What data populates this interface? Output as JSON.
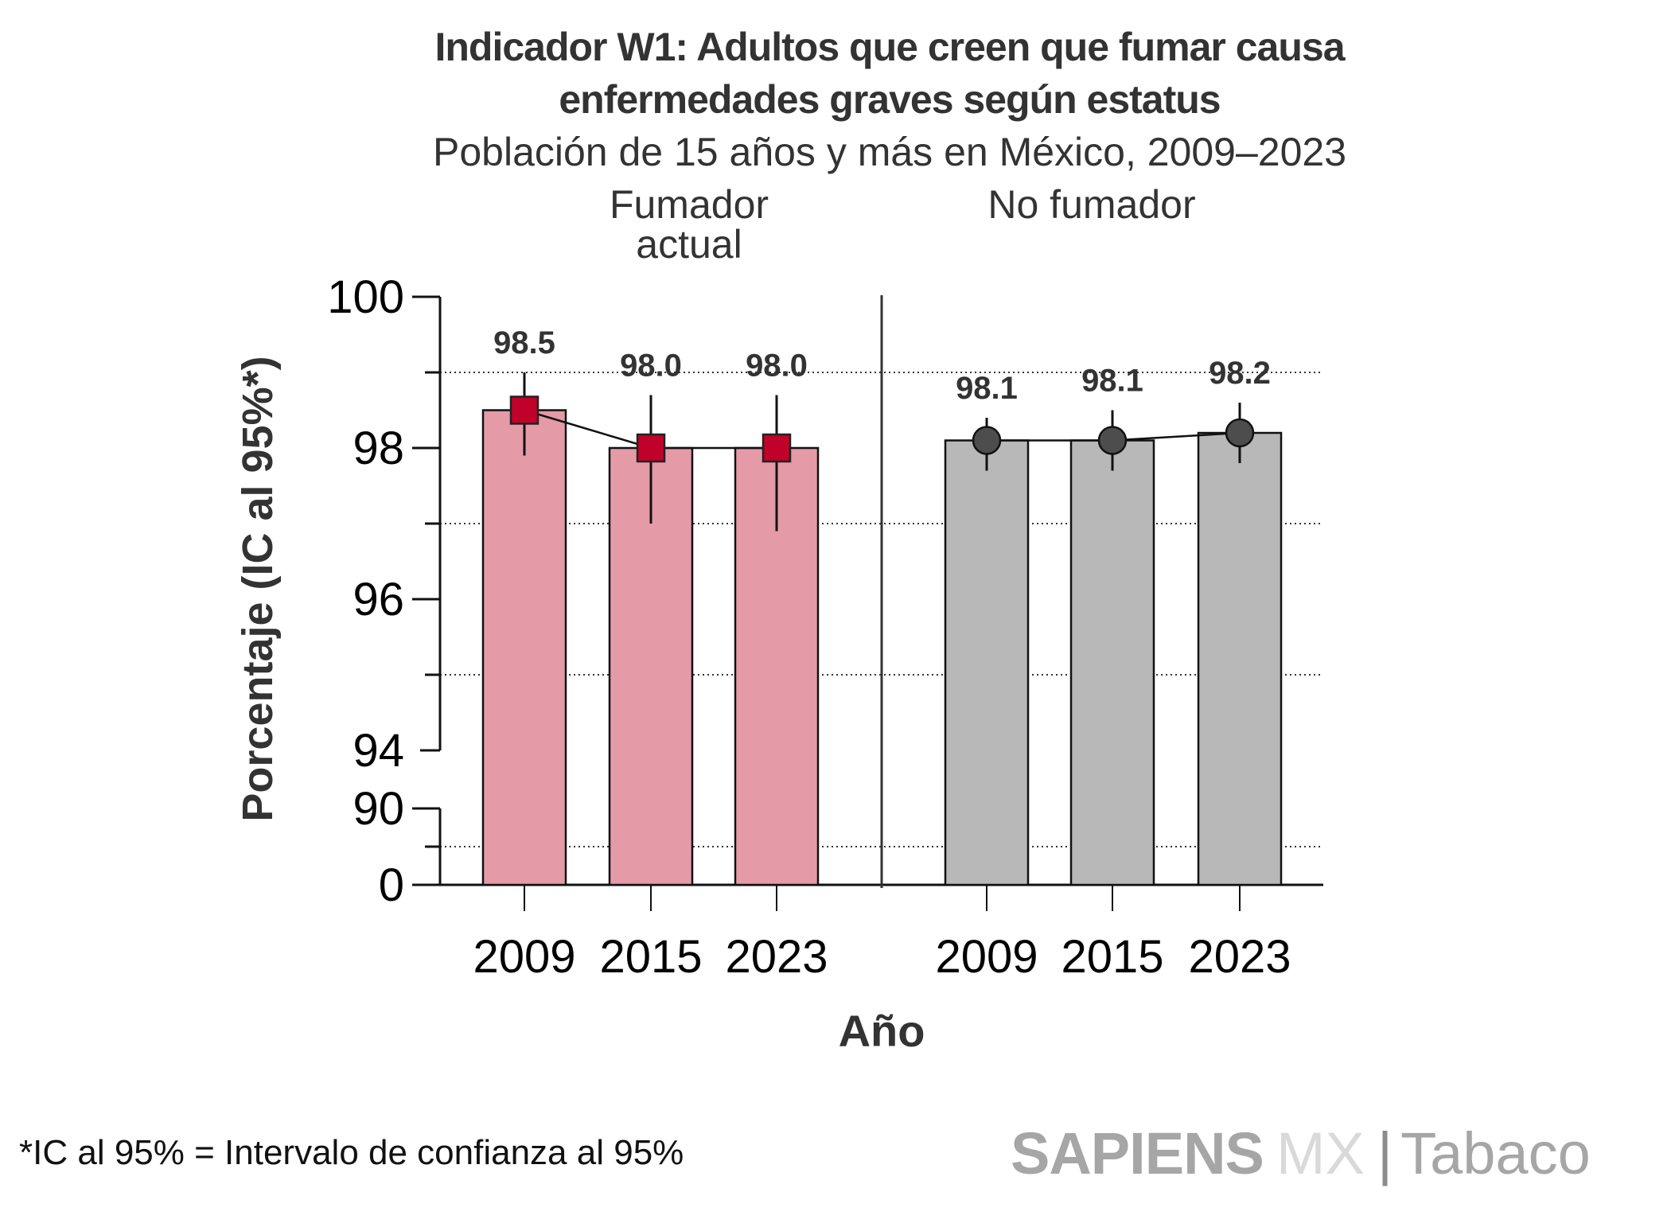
{
  "title_line1": "Indicador W1: Adultos que creen que fumar causa",
  "title_line2": "enfermedades graves según estatus",
  "subtitle": "Población de 15 años y más en México, 2009–2023",
  "footnote": "*IC al 95% = Intervalo de confianza al 95%",
  "logo": {
    "brand": "SAPIENS",
    "mx": "MX",
    "separator": "|",
    "section": "Tabaco"
  },
  "colors": {
    "fumador_bar": "#e59aa7",
    "fumador_marker": "#c0022a",
    "no_fumador_bar": "#b8b8b8",
    "no_fumador_marker": "#4d4d4d",
    "text": "#333333"
  },
  "chart_data": {
    "type": "bar",
    "title": "Indicador W1: Adultos que creen que fumar causa enfermedades graves según estatus",
    "subtitle": "Población de 15 años y más en México, 2009–2023",
    "xlabel": "Año",
    "ylabel": "Porcentaje (IC al 95%*)",
    "ylim": [
      0,
      100
    ],
    "axis_break": true,
    "yticks": [
      "100",
      "98",
      "96",
      "94",
      "90",
      "0"
    ],
    "grid": "dotted",
    "facets": [
      {
        "label_lines": [
          "Fumador",
          "actual"
        ],
        "marker": "square",
        "categories": [
          "2009",
          "2015",
          "2023"
        ],
        "values": [
          98.5,
          98.0,
          98.0
        ],
        "value_labels": [
          "98.5",
          "98.0",
          "98.0"
        ],
        "ci_low": [
          97.9,
          97.0,
          96.9
        ],
        "ci_high": [
          99.0,
          98.7,
          98.7
        ]
      },
      {
        "label_lines": [
          "No fumador"
        ],
        "marker": "circle",
        "categories": [
          "2009",
          "2015",
          "2023"
        ],
        "values": [
          98.1,
          98.1,
          98.2
        ],
        "value_labels": [
          "98.1",
          "98.1",
          "98.2"
        ],
        "ci_low": [
          97.7,
          97.7,
          97.8
        ],
        "ci_high": [
          98.4,
          98.5,
          98.6
        ]
      }
    ]
  }
}
